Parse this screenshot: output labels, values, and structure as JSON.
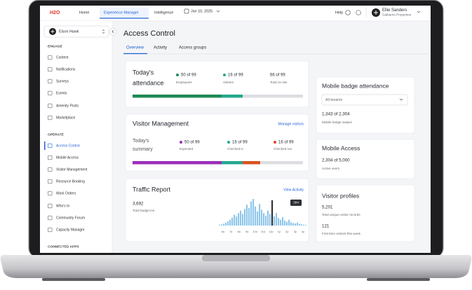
{
  "topbar": {
    "logo": "H2O",
    "tabs": [
      "Home",
      "Experience Manager",
      "Intelligence"
    ],
    "date": "Jan 10, 2025",
    "help": "Help",
    "user_name": "Ellie Sanders",
    "user_org": "Gaibarno Properties"
  },
  "sidebar": {
    "building": "Elson Hawk",
    "sections": [
      {
        "title": "ENGAGE",
        "items": [
          "Content",
          "Notifications",
          "Surveys",
          "Events",
          "Amenity Posts",
          "Marketplace"
        ]
      },
      {
        "title": "OPERATE",
        "items": [
          "Access Control",
          "Mobile Access",
          "Visitor Management",
          "Resource Booking",
          "Work Orders",
          "Who's In",
          "Community Forum",
          "Capacity Manager"
        ]
      },
      {
        "title": "CONNECTED APPS"
      }
    ]
  },
  "page": {
    "title": "Access Control",
    "tabs": [
      "Overview",
      "Activity",
      "Access groups"
    ]
  },
  "attendance": {
    "title_lines": [
      "Today's",
      "attendance"
    ],
    "stats": [
      {
        "value": "50 of 99",
        "label": "Employees"
      },
      {
        "value": "16 of 99",
        "label": "Visitors"
      },
      {
        "value": "66 of 99",
        "label": "Total on site"
      }
    ]
  },
  "visitor_management": {
    "title": "Visitor Management",
    "action": "Manage visitors",
    "summary_lines": [
      "Today's",
      "summary"
    ],
    "stats": [
      {
        "value": "50 of 99",
        "label": "Expected"
      },
      {
        "value": "16 of 99",
        "label": "Checked in"
      },
      {
        "value": "16 of 99",
        "label": "Checked out"
      }
    ]
  },
  "traffic_report": {
    "title": "Traffic Report",
    "action": "View Activity",
    "total": "3,692",
    "total_label": "Total badge-ins",
    "hours": [
      "6a",
      "7a",
      "8a",
      "9a",
      "10a",
      "11a",
      "12p",
      "1p",
      "2p",
      "3p",
      "4p"
    ],
    "bars": [
      10,
      14,
      22,
      35,
      50,
      70,
      95,
      130,
      110,
      150,
      180,
      140,
      200,
      250,
      210,
      290,
      320,
      230,
      170,
      260,
      190,
      150,
      120,
      180,
      140,
      304,
      110,
      150,
      90,
      70,
      100,
      60,
      45,
      70,
      40,
      30,
      25,
      35,
      20,
      15,
      10,
      8
    ]
  },
  "mobile_badge": {
    "title": "Mobile badge attendance",
    "select": "All tenants",
    "value": "1,343 of 2,304",
    "label": "Mobile badge swipes"
  },
  "mobile_access": {
    "title": "Mobile Access",
    "value": "2,304 of 5,000",
    "label": "Active users"
  },
  "visitor_profiles": {
    "title": "Visitor profiles",
    "stats": [
      {
        "value": "5,201",
        "label": "Total unique visitor records"
      },
      {
        "value": "121",
        "label": "First time visitors this week"
      }
    ]
  }
}
